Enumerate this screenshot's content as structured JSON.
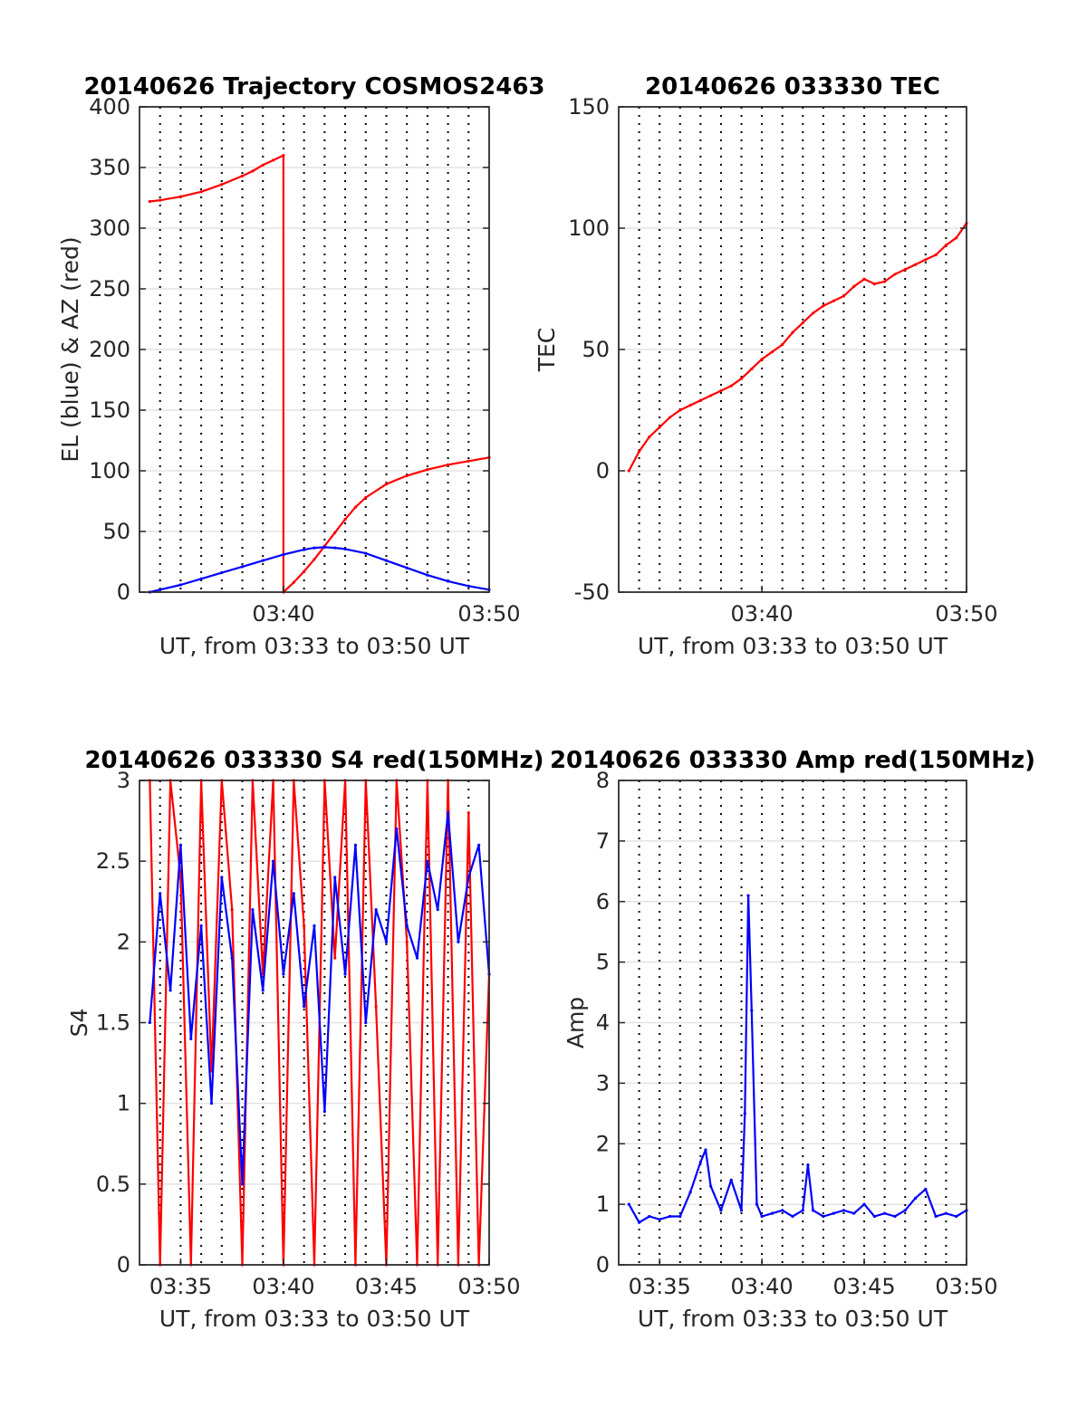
{
  "chart_data": [
    {
      "type": "line",
      "title": "20140626 Trajectory COSMOS2463",
      "xlabel": "UT, from 03:33 to 03:50 UT",
      "ylabel": "EL (blue) & AZ (red)",
      "xlim": [
        "03:33",
        "03:50"
      ],
      "ylim": [
        0,
        400
      ],
      "xticks": [
        "03:40",
        "03:50"
      ],
      "yticks": [
        0,
        50,
        100,
        150,
        200,
        250,
        300,
        350,
        400
      ],
      "grid": true,
      "series": [
        {
          "color": "#ff0000",
          "x": [
            "03:33:30",
            "03:34",
            "03:35",
            "03:36",
            "03:37",
            "03:38",
            "03:38:30",
            "03:39",
            "03:39:30",
            "03:40",
            "03:40:00",
            "03:40:30",
            "03:41",
            "03:41:30",
            "03:42",
            "03:42:30",
            "03:43",
            "03:43:30",
            "03:44",
            "03:45",
            "03:46",
            "03:47",
            "03:48",
            "03:49",
            "03:50"
          ],
          "values": [
            322,
            323,
            326,
            330,
            336,
            343,
            347,
            352,
            356,
            360,
            0,
            8,
            17,
            27,
            38,
            49,
            60,
            70,
            78,
            89,
            96,
            101,
            105,
            108,
            111
          ]
        },
        {
          "color": "#0000ff",
          "x": [
            "03:33:30",
            "03:34",
            "03:35",
            "03:36",
            "03:37",
            "03:38",
            "03:39",
            "03:40",
            "03:41",
            "03:41:30",
            "03:42",
            "03:42:30",
            "03:43",
            "03:44",
            "03:45",
            "03:46",
            "03:47",
            "03:48",
            "03:49",
            "03:50"
          ],
          "values": [
            0,
            2,
            6,
            11,
            16,
            21,
            26,
            31,
            35,
            36.5,
            37,
            36.5,
            35.5,
            32,
            26,
            20,
            14,
            9,
            5,
            2
          ]
        }
      ]
    },
    {
      "type": "line",
      "title": "20140626 033330 TEC",
      "xlabel": "UT, from 03:33 to 03:50 UT",
      "ylabel": "TEC",
      "xlim": [
        "03:33",
        "03:50"
      ],
      "ylim": [
        -50,
        150
      ],
      "xticks": [
        "03:40",
        "03:50"
      ],
      "yticks": [
        -50,
        0,
        50,
        100,
        150
      ],
      "grid": true,
      "series": [
        {
          "color": "#ff0000",
          "x": [
            "03:33:30",
            "03:34",
            "03:34:30",
            "03:35",
            "03:35:30",
            "03:36",
            "03:36:30",
            "03:37",
            "03:37:30",
            "03:38",
            "03:38:30",
            "03:39",
            "03:39:30",
            "03:40",
            "03:40:30",
            "03:41",
            "03:41:30",
            "03:42",
            "03:42:30",
            "03:43",
            "03:43:30",
            "03:44",
            "03:44:30",
            "03:45",
            "03:45:30",
            "03:46",
            "03:46:30",
            "03:47",
            "03:47:30",
            "03:48",
            "03:48:30",
            "03:49",
            "03:49:30",
            "03:50"
          ],
          "values": [
            0,
            8,
            14,
            18,
            22,
            25,
            27,
            29,
            31,
            33,
            35,
            38,
            42,
            46,
            49,
            52,
            57,
            61,
            65,
            68,
            70,
            72,
            76,
            79,
            77,
            78,
            81,
            83,
            85,
            87,
            89,
            93,
            96,
            102
          ]
        }
      ]
    },
    {
      "type": "line",
      "title": "20140626 033330 S4 red(150MHz)",
      "xlabel": "UT, from 03:33 to 03:50 UT",
      "ylabel": "S4",
      "xlim": [
        "03:33",
        "03:50"
      ],
      "ylim": [
        0,
        3
      ],
      "xticks": [
        "03:35",
        "03:40",
        "03:45",
        "03:50"
      ],
      "yticks": [
        0,
        0.5,
        1,
        1.5,
        2,
        2.5,
        3
      ],
      "grid": true,
      "series": [
        {
          "color": "#ff0000",
          "x": [
            "03:33:30",
            "03:34",
            "03:34:30",
            "03:35",
            "03:35:30",
            "03:36",
            "03:36:30",
            "03:37",
            "03:37:30",
            "03:38",
            "03:38:30",
            "03:39",
            "03:39:30",
            "03:40",
            "03:40:30",
            "03:41",
            "03:41:30",
            "03:42",
            "03:42:30",
            "03:43",
            "03:43:30",
            "03:44",
            "03:44:30",
            "03:45",
            "03:45:30",
            "03:46",
            "03:46:30",
            "03:47",
            "03:47:30",
            "03:48",
            "03:48:30",
            "03:49",
            "03:49:30",
            "03:50"
          ],
          "values": [
            3,
            0,
            3,
            2.4,
            0,
            3,
            1.2,
            3,
            2.2,
            0,
            3,
            1.8,
            3,
            0,
            3,
            2.1,
            0,
            3,
            1.9,
            3,
            0,
            3,
            1.6,
            0,
            3,
            2,
            0,
            3,
            0,
            3,
            0,
            2.8,
            0,
            1.8
          ]
        },
        {
          "color": "#0000ff",
          "x": [
            "03:33:30",
            "03:34",
            "03:34:30",
            "03:35",
            "03:35:30",
            "03:36",
            "03:36:30",
            "03:37",
            "03:37:30",
            "03:38",
            "03:38:30",
            "03:39",
            "03:39:30",
            "03:40",
            "03:40:30",
            "03:41",
            "03:41:30",
            "03:42",
            "03:42:30",
            "03:43",
            "03:43:30",
            "03:44",
            "03:44:30",
            "03:45",
            "03:45:30",
            "03:46",
            "03:46:30",
            "03:47",
            "03:47:30",
            "03:48",
            "03:48:30",
            "03:49",
            "03:49:30",
            "03:50"
          ],
          "values": [
            1.5,
            2.3,
            1.7,
            2.6,
            1.4,
            2.1,
            1.0,
            2.4,
            1.9,
            0.5,
            2.2,
            1.7,
            2.5,
            1.8,
            2.3,
            1.6,
            2.1,
            0.95,
            2.4,
            1.8,
            2.6,
            1.5,
            2.2,
            2.0,
            2.7,
            2.1,
            1.9,
            2.5,
            2.2,
            2.8,
            2.0,
            2.4,
            2.6,
            1.8
          ]
        }
      ]
    },
    {
      "type": "line",
      "title": "20140626 033330 Amp red(150MHz)",
      "xlabel": "UT, from 03:33 to 03:50 UT",
      "ylabel": "Amp",
      "xlim": [
        "03:33",
        "03:50"
      ],
      "ylim": [
        0,
        8
      ],
      "xticks": [
        "03:35",
        "03:40",
        "03:45",
        "03:50"
      ],
      "yticks": [
        0,
        1,
        2,
        3,
        4,
        5,
        6,
        7,
        8
      ],
      "grid": true,
      "series": [
        {
          "color": "#0000ff",
          "x": [
            "03:33:30",
            "03:34",
            "03:34:30",
            "03:35",
            "03:35:30",
            "03:36",
            "03:36:30",
            "03:37",
            "03:37:15",
            "03:37:30",
            "03:38",
            "03:38:30",
            "03:39",
            "03:39:10",
            "03:39:20",
            "03:39:30",
            "03:39:45",
            "03:40",
            "03:40:30",
            "03:41",
            "03:41:30",
            "03:42",
            "03:42:15",
            "03:42:30",
            "03:43",
            "03:43:30",
            "03:44",
            "03:44:30",
            "03:45",
            "03:45:30",
            "03:46",
            "03:46:30",
            "03:47",
            "03:47:30",
            "03:48",
            "03:48:30",
            "03:49",
            "03:49:30",
            "03:50"
          ],
          "values": [
            1.0,
            0.7,
            0.8,
            0.75,
            0.8,
            0.8,
            1.2,
            1.7,
            1.9,
            1.3,
            0.9,
            1.4,
            0.9,
            2.5,
            6.1,
            4.2,
            1.0,
            0.8,
            0.85,
            0.9,
            0.8,
            0.9,
            1.65,
            0.9,
            0.8,
            0.85,
            0.9,
            0.85,
            1.0,
            0.8,
            0.85,
            0.8,
            0.9,
            1.1,
            1.25,
            0.8,
            0.85,
            0.8,
            0.9
          ]
        }
      ]
    }
  ]
}
